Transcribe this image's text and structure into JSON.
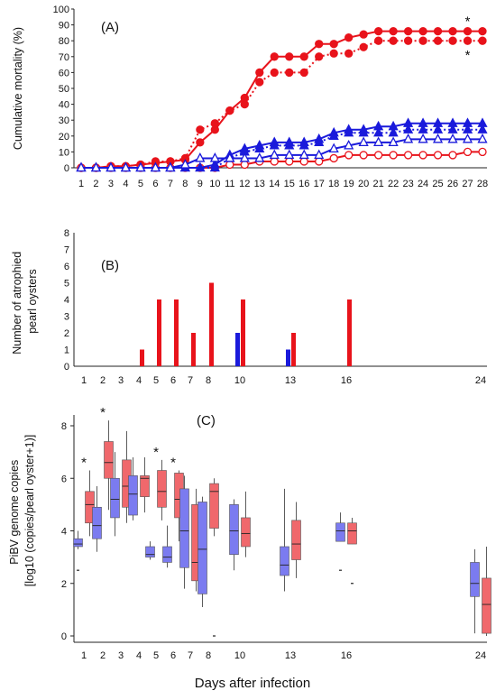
{
  "figure": {
    "xlabel_bottom": "Days after infection",
    "colors": {
      "red": "#e8131b",
      "blue": "#1a1adb",
      "box_red": "#f0686c",
      "box_blue": "#7b7bf0"
    }
  },
  "chart_data": [
    {
      "type": "line",
      "panel_label": "(A)",
      "ylabel": "Cumulative mortality (%)",
      "ylim": [
        0,
        100
      ],
      "yticks": [
        0,
        10,
        20,
        30,
        40,
        50,
        60,
        70,
        80,
        90,
        100
      ],
      "x": [
        1,
        2,
        3,
        4,
        5,
        6,
        7,
        8,
        9,
        10,
        11,
        12,
        13,
        14,
        15,
        16,
        17,
        18,
        19,
        20,
        21,
        22,
        23,
        24,
        25,
        26,
        27,
        28
      ],
      "series": [
        {
          "color": "#e8131b",
          "marker": "filled-circle",
          "line": "solid",
          "values": [
            0,
            0,
            1,
            1,
            2,
            3,
            4,
            5,
            16,
            24,
            36,
            44,
            60,
            70,
            70,
            70,
            78,
            78,
            82,
            84,
            86,
            86,
            86,
            86,
            86,
            86,
            86,
            86
          ]
        },
        {
          "color": "#e8131b",
          "marker": "filled-circle",
          "line": "dotted",
          "values": [
            0,
            0,
            1,
            1,
            2,
            4,
            4,
            6,
            24,
            28,
            36,
            40,
            54,
            60,
            60,
            60,
            70,
            72,
            72,
            76,
            80,
            80,
            80,
            80,
            80,
            80,
            80,
            80
          ]
        },
        {
          "color": "#e8131b",
          "marker": "open-circle",
          "line": "solid",
          "values": [
            0,
            0,
            0,
            0,
            0,
            0,
            0,
            0,
            0,
            0,
            2,
            2,
            4,
            4,
            4,
            4,
            4,
            6,
            8,
            8,
            8,
            8,
            8,
            8,
            8,
            8,
            10,
            10
          ]
        },
        {
          "color": "#1a1adb",
          "marker": "filled-triangle",
          "line": "solid",
          "values": [
            0,
            0,
            0,
            0,
            0,
            0,
            0,
            0,
            0,
            2,
            8,
            12,
            14,
            16,
            16,
            16,
            18,
            22,
            24,
            24,
            26,
            26,
            28,
            28,
            28,
            28,
            28,
            28
          ]
        },
        {
          "color": "#1a1adb",
          "marker": "filled-triangle",
          "line": "dotted",
          "values": [
            0,
            0,
            0,
            0,
            0,
            0,
            0,
            0,
            0,
            0,
            6,
            10,
            12,
            14,
            14,
            14,
            16,
            20,
            22,
            22,
            22,
            22,
            24,
            24,
            24,
            24,
            24,
            24
          ]
        },
        {
          "color": "#1a1adb",
          "marker": "open-triangle",
          "line": "solid",
          "values": [
            0,
            0,
            0,
            0,
            0,
            0,
            0,
            2,
            6,
            6,
            6,
            6,
            6,
            8,
            8,
            8,
            8,
            12,
            14,
            16,
            16,
            16,
            18,
            18,
            18,
            18,
            18,
            18
          ]
        }
      ],
      "annotations": [
        {
          "text": "*",
          "x": 27,
          "position": "above-top-red-line"
        },
        {
          "text": "*",
          "x": 27,
          "position": "below-dotted-red-line"
        }
      ]
    },
    {
      "type": "bar",
      "panel_label": "(B)",
      "ylabel": [
        "Number of atrophied",
        "pearl oysters"
      ],
      "ylim": [
        0,
        8
      ],
      "yticks": [
        0,
        1,
        2,
        3,
        4,
        5,
        6,
        7,
        8
      ],
      "xticks": [
        "1",
        "2",
        "3",
        "4",
        "5",
        "6",
        "7",
        "8",
        "10",
        "13",
        "16",
        "24"
      ],
      "series": [
        {
          "color": "#1a1adb",
          "values": {
            "10": 2,
            "13": 1
          }
        },
        {
          "color": "#e8131b",
          "values": {
            "4": 1,
            "5": 4,
            "6": 4,
            "7": 2,
            "8": 5,
            "10": 4,
            "13": 2,
            "16": 4
          }
        }
      ]
    },
    {
      "type": "box",
      "panel_label": "(C)",
      "ylabel": [
        "PiBV genome copies",
        "[log10 (copies/pearl oyster+1)]"
      ],
      "ylim": [
        0,
        8
      ],
      "yticks": [
        0,
        2,
        4,
        6,
        8
      ],
      "xticks": [
        "1",
        "2",
        "3",
        "4",
        "5",
        "6",
        "7",
        "8",
        "10",
        "13",
        "16",
        "24"
      ],
      "groups": [
        {
          "day": "1",
          "significant": true,
          "blue": {
            "min": 3.3,
            "q1": 3.4,
            "median": 3.5,
            "q3": 3.7,
            "max": 4.0,
            "outliers": [
              2.5
            ]
          },
          "red": {
            "min": 3.8,
            "q1": 4.3,
            "median": 5.0,
            "q3": 5.5,
            "max": 6.3,
            "outliers": []
          }
        },
        {
          "day": "2",
          "significant": true,
          "blue": {
            "min": 3.2,
            "q1": 3.7,
            "median": 4.2,
            "q3": 4.9,
            "max": 5.7,
            "outliers": []
          },
          "red": {
            "min": 4.8,
            "q1": 6.0,
            "median": 6.6,
            "q3": 7.4,
            "max": 8.2,
            "outliers": []
          }
        },
        {
          "day": "3",
          "significant": false,
          "blue": {
            "min": 3.8,
            "q1": 4.5,
            "median": 5.2,
            "q3": 6.0,
            "max": 7.0,
            "outliers": []
          },
          "red": {
            "min": 4.3,
            "q1": 4.9,
            "median": 5.7,
            "q3": 6.7,
            "max": 7.8,
            "outliers": []
          }
        },
        {
          "day": "4",
          "significant": false,
          "blue": {
            "min": 4.4,
            "q1": 4.6,
            "median": 5.4,
            "q3": 6.1,
            "max": 6.8,
            "outliers": []
          },
          "red": {
            "min": 4.7,
            "q1": 5.3,
            "median": 6.0,
            "q3": 6.1,
            "max": 6.8,
            "outliers": []
          }
        },
        {
          "day": "5",
          "significant": true,
          "blue": {
            "min": 2.9,
            "q1": 3.0,
            "median": 3.1,
            "q3": 3.4,
            "max": 3.6,
            "outliers": []
          },
          "red": {
            "min": 4.4,
            "q1": 4.9,
            "median": 5.5,
            "q3": 6.3,
            "max": 6.7,
            "outliers": []
          }
        },
        {
          "day": "6",
          "significant": true,
          "blue": {
            "min": 2.6,
            "q1": 2.8,
            "median": 3.0,
            "q3": 3.4,
            "max": 4.2,
            "outliers": []
          },
          "red": {
            "min": 3.6,
            "q1": 4.5,
            "median": 5.2,
            "q3": 6.2,
            "max": 6.3,
            "outliers": []
          }
        },
        {
          "day": "7",
          "significant": false,
          "blue": {
            "min": 1.8,
            "q1": 2.6,
            "median": 4.0,
            "q3": 5.6,
            "max": 6.1,
            "outliers": []
          },
          "red": {
            "min": 1.7,
            "q1": 2.1,
            "median": 2.8,
            "q3": 5.0,
            "max": 5.6,
            "outliers": []
          }
        },
        {
          "day": "8",
          "significant": false,
          "blue": {
            "min": 1.1,
            "q1": 1.6,
            "median": 3.3,
            "q3": 5.1,
            "max": 5.3,
            "outliers": []
          },
          "red": {
            "min": 3.8,
            "q1": 4.1,
            "median": 5.5,
            "q3": 5.8,
            "max": 6.0,
            "outliers": [
              0.0
            ]
          }
        },
        {
          "day": "10",
          "significant": false,
          "blue": {
            "min": 2.5,
            "q1": 3.1,
            "median": 4.0,
            "q3": 5.0,
            "max": 5.2,
            "outliers": []
          },
          "red": {
            "min": 3.0,
            "q1": 3.4,
            "median": 3.9,
            "q3": 4.5,
            "max": 5.5,
            "outliers": []
          }
        },
        {
          "day": "13",
          "significant": false,
          "blue": {
            "min": 1.7,
            "q1": 2.3,
            "median": 2.7,
            "q3": 3.4,
            "max": 5.6,
            "outliers": []
          },
          "red": {
            "min": 2.2,
            "q1": 2.9,
            "median": 3.5,
            "q3": 4.4,
            "max": 5.1,
            "outliers": []
          }
        },
        {
          "day": "16",
          "significant": false,
          "blue": {
            "min": 3.6,
            "q1": 3.6,
            "median": 4.0,
            "q3": 4.3,
            "max": 4.7,
            "outliers": [
              2.5
            ]
          },
          "red": {
            "min": 3.5,
            "q1": 3.5,
            "median": 4.0,
            "q3": 4.3,
            "max": 4.5,
            "outliers": [
              2.0
            ]
          }
        },
        {
          "day": "24",
          "significant": false,
          "blue": {
            "min": 0.1,
            "q1": 1.5,
            "median": 2.0,
            "q3": 2.8,
            "max": 3.3,
            "outliers": []
          },
          "red": {
            "min": 0.0,
            "q1": 0.1,
            "median": 1.2,
            "q3": 2.2,
            "max": 3.4,
            "outliers": []
          }
        }
      ],
      "annotation_text": "*"
    }
  ]
}
